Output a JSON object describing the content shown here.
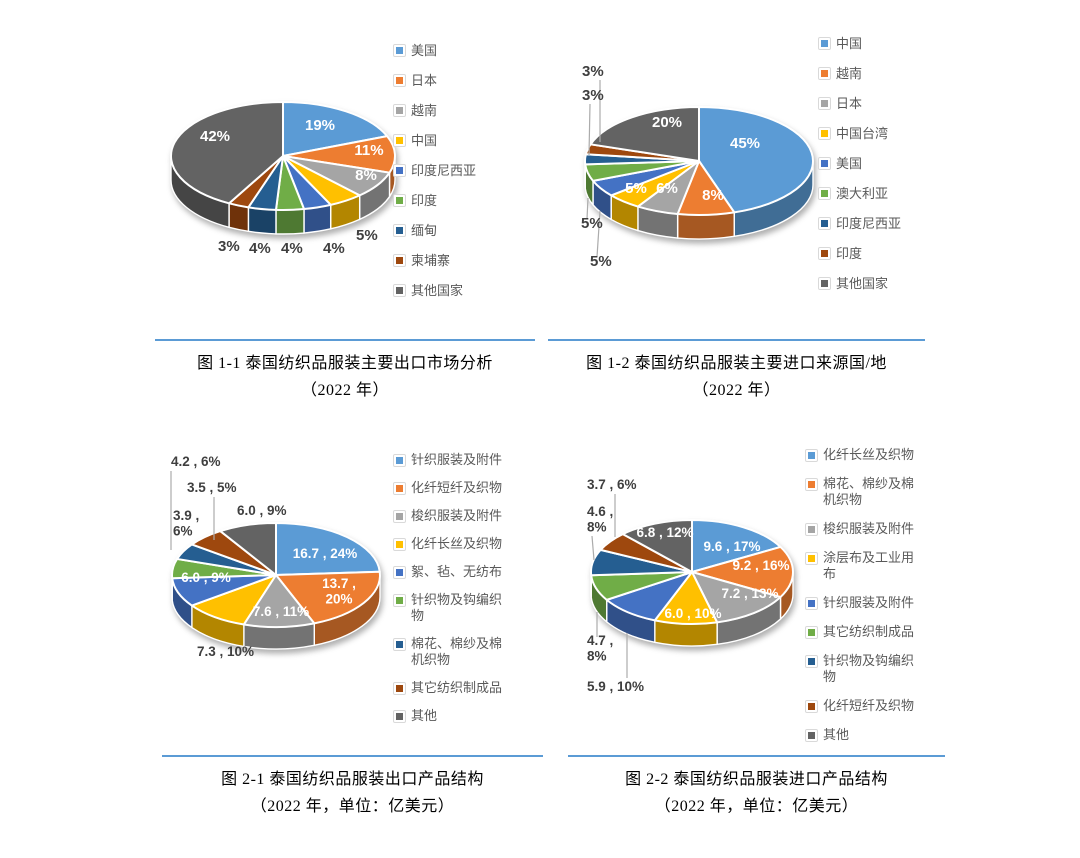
{
  "page": {
    "background": "#ffffff"
  },
  "styles": {
    "divider_color": "#5B9BD5",
    "legend_text_color": "#595959",
    "inside_label_color": "#ffffff",
    "outside_label_color": "#3f3f3f",
    "leader_line_color": "#ababab"
  },
  "chart_data": [
    {
      "id": "fig-1-1",
      "type": "pie",
      "style": "3d",
      "title": "图 1-1 泰国纺织品服装主要出口市场分析",
      "subtitle": "（2022 年）",
      "unit": "percent",
      "legend_position": "right",
      "slices": [
        {
          "name": "美国",
          "pct": 19,
          "label": "19%",
          "color": "#5B9BD5",
          "inside": true,
          "anchor": "middle",
          "lpos": [
            180,
            102
          ]
        },
        {
          "name": "日本",
          "pct": 11,
          "label": "11%",
          "color": "#ED7D31",
          "inside": true,
          "anchor": "middle",
          "lpos": [
            229,
            127
          ]
        },
        {
          "name": "越南",
          "pct": 8,
          "label": "8%",
          "color": "#A5A5A5",
          "inside": true,
          "anchor": "middle",
          "lpos": [
            226,
            152
          ]
        },
        {
          "name": "中国",
          "pct": 5,
          "label": "5%",
          "color": "#FFC000",
          "inside": false,
          "anchor": "start",
          "lpos": [
            216,
            212
          ]
        },
        {
          "name": "印度尼西亚",
          "pct": 4,
          "label": "4%",
          "color": "#4472C4",
          "inside": false,
          "anchor": "start",
          "lpos": [
            183,
            225
          ]
        },
        {
          "name": "印度",
          "pct": 4,
          "label": "4%",
          "color": "#70AD47",
          "inside": false,
          "anchor": "start",
          "lpos": [
            141,
            225
          ]
        },
        {
          "name": "缅甸",
          "pct": 4,
          "label": "4%",
          "color": "#255E91",
          "inside": false,
          "anchor": "start",
          "lpos": [
            109,
            225
          ]
        },
        {
          "name": "柬埔寨",
          "pct": 3,
          "label": "3%",
          "color": "#9E480E",
          "inside": false,
          "anchor": "start",
          "lpos": [
            78,
            223
          ]
        },
        {
          "name": "其他国家",
          "pct": 42,
          "label": "42%",
          "color": "#636363",
          "inside": true,
          "anchor": "middle",
          "lpos": [
            75,
            113
          ]
        }
      ]
    },
    {
      "id": "fig-1-2",
      "type": "pie",
      "style": "3d",
      "title": "图 1-2 泰国纺织品服装主要进口来源国/地",
      "subtitle": "（2022 年）",
      "unit": "percent",
      "legend_position": "right",
      "slices": [
        {
          "name": "中国",
          "pct": 45,
          "label": "45%",
          "color": "#5B9BD5",
          "inside": true,
          "anchor": "middle",
          "lpos": [
            185,
            123
          ]
        },
        {
          "name": "越南",
          "pct": 8,
          "label": "8%",
          "color": "#ED7D31",
          "inside": true,
          "anchor": "middle",
          "lpos": [
            153,
            175
          ]
        },
        {
          "name": "日本",
          "pct": 6,
          "label": "6%",
          "color": "#A5A5A5",
          "inside": true,
          "anchor": "middle",
          "lpos": [
            107,
            168
          ]
        },
        {
          "name": "中国台湾",
          "pct": 5,
          "label": "5%",
          "color": "#FFC000",
          "inside": true,
          "anchor": "middle",
          "lpos": [
            76,
            168
          ]
        },
        {
          "name": "美国",
          "pct": 5,
          "label": "5%",
          "color": "#4472C4",
          "inside": false,
          "anchor": "start",
          "lpos": [
            30,
            241
          ],
          "leader": [
            [
              40,
              186
            ],
            [
              37,
              232
            ]
          ]
        },
        {
          "name": "澳大利亚",
          "pct": 5,
          "label": "5%",
          "color": "#70AD47",
          "inside": false,
          "anchor": "start",
          "lpos": [
            21,
            203
          ],
          "leader": [
            [
              28,
              173
            ],
            [
              27,
              194
            ]
          ]
        },
        {
          "name": "印度尼西亚",
          "pct": 3,
          "label": "3%",
          "color": "#255E91",
          "inside": false,
          "anchor": "start",
          "lpos": [
            22,
            75
          ],
          "leader": [
            [
              30,
              79
            ],
            [
              29,
              130
            ]
          ]
        },
        {
          "name": "印度",
          "pct": 3,
          "label": "3%",
          "color": "#9E480E",
          "inside": false,
          "anchor": "start",
          "lpos": [
            22,
            51
          ],
          "leader": [
            [
              40,
              55
            ],
            [
              40,
              117
            ]
          ]
        },
        {
          "name": "其他国家",
          "pct": 20,
          "label": "20%",
          "color": "#636363",
          "inside": true,
          "anchor": "middle",
          "lpos": [
            107,
            102
          ]
        }
      ]
    },
    {
      "id": "fig-2-1",
      "type": "pie",
      "style": "3d",
      "title": "图 2-1 泰国纺织品服装出口产品结构",
      "subtitle": "（2022 年，单位：亿美元）",
      "unit": "亿美元",
      "legend_position": "right",
      "slices": [
        {
          "name": "针织服装及附件",
          "value": 16.7,
          "pct": 24,
          "label": "16.7 , 24%",
          "color": "#5B9BD5",
          "inside": true,
          "anchor": "middle",
          "lpos": [
            185,
            118
          ]
        },
        {
          "name": "化纤短纤及织物",
          "value": 13.7,
          "pct": 20,
          "label": "13.7 , 20%",
          "lines": [
            "13.7 ,",
            "20%"
          ],
          "color": "#ED7D31",
          "inside": true,
          "anchor": "middle",
          "lpos": [
            199,
            148
          ]
        },
        {
          "name": "梭织服装及附件",
          "value": 7.6,
          "pct": 11,
          "label": "7.6 , 11%",
          "color": "#A5A5A5",
          "inside": true,
          "anchor": "middle",
          "lpos": [
            141,
            176
          ]
        },
        {
          "name": "化纤长丝及织物",
          "value": 7.3,
          "pct": 10,
          "label": "7.3 , 10%",
          "color": "#FFC000",
          "inside": false,
          "anchor": "start",
          "lpos": [
            57,
            216
          ]
        },
        {
          "name": "絮、毡、无纺布",
          "value": 6.0,
          "pct": 9,
          "label": "6.0 , 9%",
          "color": "#4472C4",
          "inside": true,
          "anchor": "middle",
          "lpos": [
            66,
            142
          ]
        },
        {
          "name": "针织物及钩编织物",
          "value": 3.9,
          "pct": 6,
          "label": "3.9 , 6%",
          "lines": [
            "3.9 ,",
            "6%"
          ],
          "color": "#70AD47",
          "inside": false,
          "anchor": "start",
          "lpos": [
            33,
            80
          ]
        },
        {
          "name": "棉花、棉纱及棉机织物",
          "value": 3.5,
          "pct": 5,
          "label": "3.5 , 5%",
          "color": "#255E91",
          "inside": false,
          "anchor": "start",
          "lpos": [
            47,
            52
          ],
          "leader": [
            [
              74,
              57
            ],
            [
              74,
              100
            ]
          ]
        },
        {
          "name": "其它纺织制成品",
          "value": 4.2,
          "pct": 6,
          "label": "4.2 , 6%",
          "color": "#9E480E",
          "inside": false,
          "anchor": "start",
          "lpos": [
            31,
            26
          ],
          "leader": [
            [
              31,
              31
            ],
            [
              31,
              110
            ]
          ]
        },
        {
          "name": "其他",
          "value": 6.0,
          "pct": 9,
          "label": "6.0 , 9%",
          "color": "#636363",
          "inside": false,
          "anchor": "start",
          "lpos": [
            97,
            75
          ]
        }
      ]
    },
    {
      "id": "fig-2-2",
      "type": "pie",
      "style": "3d",
      "title": "图 2-2 泰国纺织品服装进口产品结构",
      "subtitle": "（2022 年，单位：亿美元）",
      "unit": "亿美元",
      "legend_position": "right",
      "slices": [
        {
          "name": "化纤长丝及织物",
          "value": 9.6,
          "pct": 17,
          "label": "9.6 , 17%",
          "color": "#5B9BD5",
          "inside": true,
          "anchor": "middle",
          "lpos": [
            172,
            111
          ]
        },
        {
          "name": "棉花、棉纱及棉机织物",
          "value": 9.2,
          "pct": 16,
          "label": "9.2 , 16%",
          "color": "#ED7D31",
          "inside": true,
          "anchor": "middle",
          "lpos": [
            201,
            130
          ]
        },
        {
          "name": "梭织服装及附件",
          "value": 7.2,
          "pct": 13,
          "label": "7.2 , 13%",
          "color": "#A5A5A5",
          "inside": true,
          "anchor": "middle",
          "lpos": [
            190,
            158
          ]
        },
        {
          "name": "涂层布及工业用布",
          "value": 6.0,
          "pct": 10,
          "label": "6.0 , 10%",
          "color": "#FFC000",
          "inside": true,
          "anchor": "middle",
          "lpos": [
            133,
            178
          ]
        },
        {
          "name": "针织服装及附件",
          "value": 5.9,
          "pct": 10,
          "label": "5.9 , 10%",
          "color": "#4472C4",
          "inside": false,
          "anchor": "start",
          "lpos": [
            27,
            251
          ],
          "leader": [
            [
              67,
              193
            ],
            [
              67,
              238
            ]
          ]
        },
        {
          "name": "其它纺织制成品",
          "value": 4.7,
          "pct": 8,
          "label": "4.7 , 8%",
          "lines": [
            "4.7 ,",
            "8%"
          ],
          "color": "#70AD47",
          "inside": false,
          "anchor": "start",
          "lpos": [
            27,
            205
          ],
          "leader": [
            [
              37,
              172
            ],
            [
              37,
              197
            ]
          ]
        },
        {
          "name": "针织物及钩编织物",
          "value": 4.6,
          "pct": 8,
          "label": "4.6 , 8%",
          "lines": [
            "4.6 ,",
            "8%"
          ],
          "color": "#255E91",
          "inside": false,
          "anchor": "start",
          "lpos": [
            27,
            76
          ],
          "leader": [
            [
              32,
              96
            ],
            [
              34,
              120
            ]
          ]
        },
        {
          "name": "化纤短纤及织物",
          "value": 3.7,
          "pct": 6,
          "label": "3.7 , 6%",
          "color": "#9E480E",
          "inside": false,
          "anchor": "start",
          "lpos": [
            27,
            49
          ],
          "leader": [
            [
              55,
              54
            ],
            [
              55,
              97
            ]
          ]
        },
        {
          "name": "其他",
          "value": 6.8,
          "pct": 12,
          "label": "6.8 , 12%",
          "color": "#636363",
          "inside": true,
          "anchor": "middle",
          "lpos": [
            105,
            97
          ]
        }
      ]
    }
  ]
}
